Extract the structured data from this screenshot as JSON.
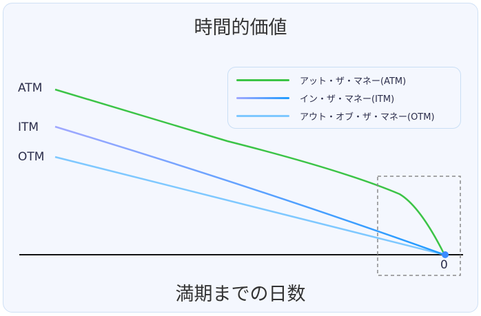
{
  "title": "時間的価値",
  "x_axis_label": "満期までの日数",
  "x_tick_zero": "0",
  "line_labels": {
    "atm": "ATM",
    "itm": "ITM",
    "otm": "OTM"
  },
  "legend": [
    {
      "label": "アット・ザ・マネー(ATM)",
      "color": "#3cc447"
    },
    {
      "label": "イン・ザ・マネー(ITM)",
      "color": "#1e9bff"
    },
    {
      "label": "アウト・オブ・ザ・マネー(OTM)",
      "color": "#7ec8ff"
    }
  ],
  "colors": {
    "atm": "#3cc447",
    "itm_start": "#a0a8ff",
    "itm_end": "#1e9bff",
    "otm": "#7ec8ff",
    "endpoint": "#3b8bff",
    "highlight_box": "#8a8a8a"
  }
}
